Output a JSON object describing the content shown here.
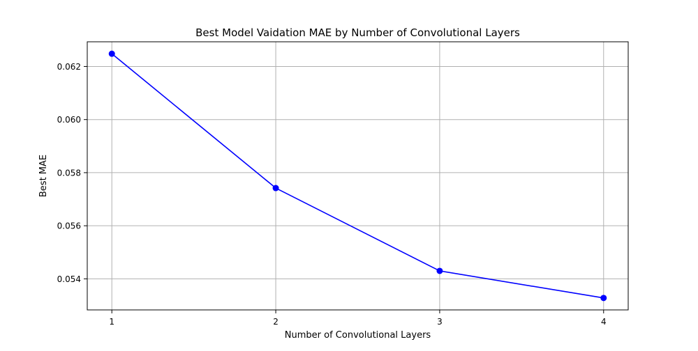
{
  "chart_data": {
    "type": "line",
    "title": "Best Model Vaidation MAE by Number of Convolutional Layers",
    "xlabel": "Number of Convolutional Layers",
    "ylabel": "Best MAE",
    "x": [
      1,
      2,
      3,
      4
    ],
    "x_tick_labels": [
      "1",
      "2",
      "3",
      "4"
    ],
    "y_ticks": [
      0.054,
      0.056,
      0.058,
      0.06,
      0.062
    ],
    "y_tick_labels": [
      "0.054",
      "0.056",
      "0.058",
      "0.060",
      "0.062"
    ],
    "xlim": [
      0.85,
      4.15
    ],
    "ylim": [
      0.05283,
      0.06293
    ],
    "grid": true,
    "series": [
      {
        "values": [
          0.06248,
          0.05742,
          0.0543,
          0.05328
        ],
        "color": "#0000ff",
        "marker": "circle"
      }
    ]
  },
  "colors": {
    "grid": "#b0b0b0",
    "axes": "#000000",
    "background": "#ffffff"
  }
}
